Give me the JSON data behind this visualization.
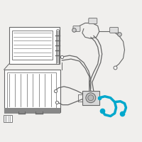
{
  "bg_color": "#f0efed",
  "line_color": "#666666",
  "highlight_color": "#00a8cc",
  "lw_main": 0.7,
  "lw_thick": 1.5,
  "lw_hose": 2.2
}
